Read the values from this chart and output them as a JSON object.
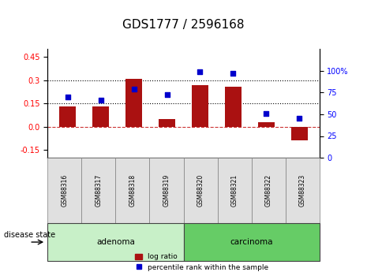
{
  "title": "GDS1777 / 2596168",
  "samples": [
    "GSM88316",
    "GSM88317",
    "GSM88318",
    "GSM88319",
    "GSM88320",
    "GSM88321",
    "GSM88322",
    "GSM88323"
  ],
  "log_ratio": [
    0.13,
    0.13,
    0.31,
    0.05,
    0.265,
    0.255,
    0.03,
    -0.09
  ],
  "percentile_rank": [
    70,
    66,
    79,
    73,
    99,
    97,
    51,
    45
  ],
  "groups": [
    {
      "label": "adenoma",
      "start": 0,
      "end": 3,
      "color": "#c8f0c8"
    },
    {
      "label": "carcinoma",
      "start": 4,
      "end": 7,
      "color": "#66cc66"
    }
  ],
  "bar_color": "#aa1111",
  "dot_color": "#0000cc",
  "ylim_left": [
    -0.2,
    0.5
  ],
  "ylim_right": [
    0,
    125
  ],
  "yticks_left": [
    -0.15,
    0.0,
    0.15,
    0.3,
    0.45
  ],
  "yticks_right": [
    0,
    25,
    50,
    75,
    100
  ],
  "ytick_labels_right": [
    "0",
    "25",
    "50",
    "75",
    "100%"
  ],
  "hlines": [
    0.0,
    0.15,
    0.3
  ],
  "hline_styles": [
    "--",
    ":",
    ":"
  ],
  "hline_colors": [
    "#cc3333",
    "#000000",
    "#000000"
  ],
  "disease_state_label": "disease state",
  "legend_log_ratio": "log ratio",
  "legend_percentile": "percentile rank within the sample",
  "title_fontsize": 11,
  "tick_fontsize": 7,
  "label_fontsize": 8
}
